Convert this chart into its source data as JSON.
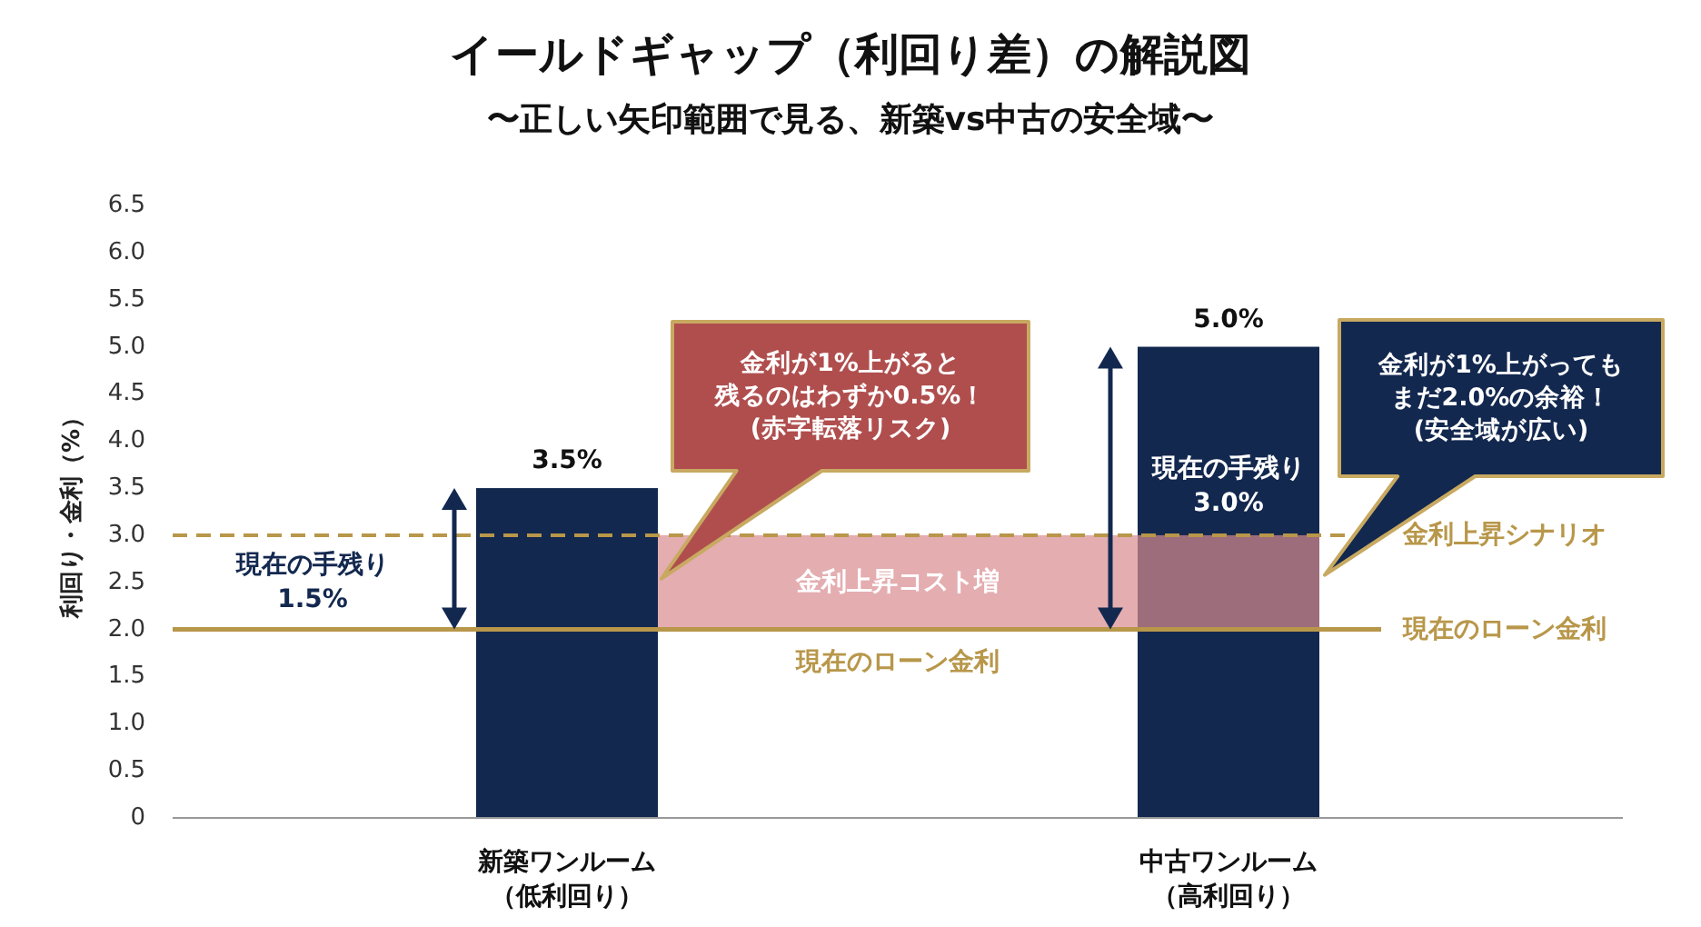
{
  "chart_data": {
    "type": "bar",
    "title": "イールドギャップ（利回り差）の解説図",
    "subtitle": "〜正しい矢印範囲で見る、新築vs中古の安全域〜",
    "ylabel": "利回り・金利（%）",
    "categories": [
      "新築ワンルーム（低利回り）",
      "中古ワンルーム（高利回り）"
    ],
    "values": [
      3.5,
      5.0
    ],
    "color": "#13284f",
    "value_labels": [
      "3.5%",
      "5.0%"
    ],
    "ylim": [
      0,
      6.5
    ],
    "yticks": [
      0,
      {
        "value": 0.5,
        "label": "0.5"
      },
      {
        "value": 1,
        "label": "1.0"
      },
      {
        "value": 1.5,
        "label": "1.5"
      },
      {
        "value": 2,
        "label": "2.0"
      },
      {
        "value": 2.5,
        "label": "2.5"
      },
      {
        "value": 3,
        "label": "3.0"
      },
      {
        "value": 3.5,
        "label": "3.5"
      },
      {
        "value": 4,
        "label": "4.0"
      },
      {
        "value": 4.5,
        "label": "4.5"
      },
      {
        "value": 5,
        "label": "5.0"
      },
      {
        "value": 5.5,
        "label": "5.5"
      },
      {
        "value": 6,
        "label": "6.0"
      },
      {
        "value": 6.5,
        "label": "6.5"
      }
    ],
    "ref_lines": [
      {
        "axis": "y",
        "value": 2,
        "label": "現在のローン金利",
        "color": "#b8974a",
        "line_style": "solid"
      },
      {
        "axis": "y",
        "value": 3,
        "label": "金利上昇シナリオ",
        "color": "#b8974a",
        "line_style": "dashed"
      }
    ],
    "bands": [
      {
        "axis": "y",
        "from": 2,
        "to": 3,
        "label": "金利上昇コスト増",
        "color": "#d98a8f"
      }
    ],
    "annotations": [
      "金利が1%上がると",
      "残るのはわずか0.5%！",
      "(赤字転落リスク)",
      "金利が1%上がっても",
      "まだ2.0%の余裕！",
      "(安全域が広い)",
      {
        "text": "現在の手残り\n1.5%"
      },
      {
        "text": "現在の手残り\n3.0%"
      },
      {
        "text": "現在のローン金利",
        "y": 2
      }
    ]
  }
}
